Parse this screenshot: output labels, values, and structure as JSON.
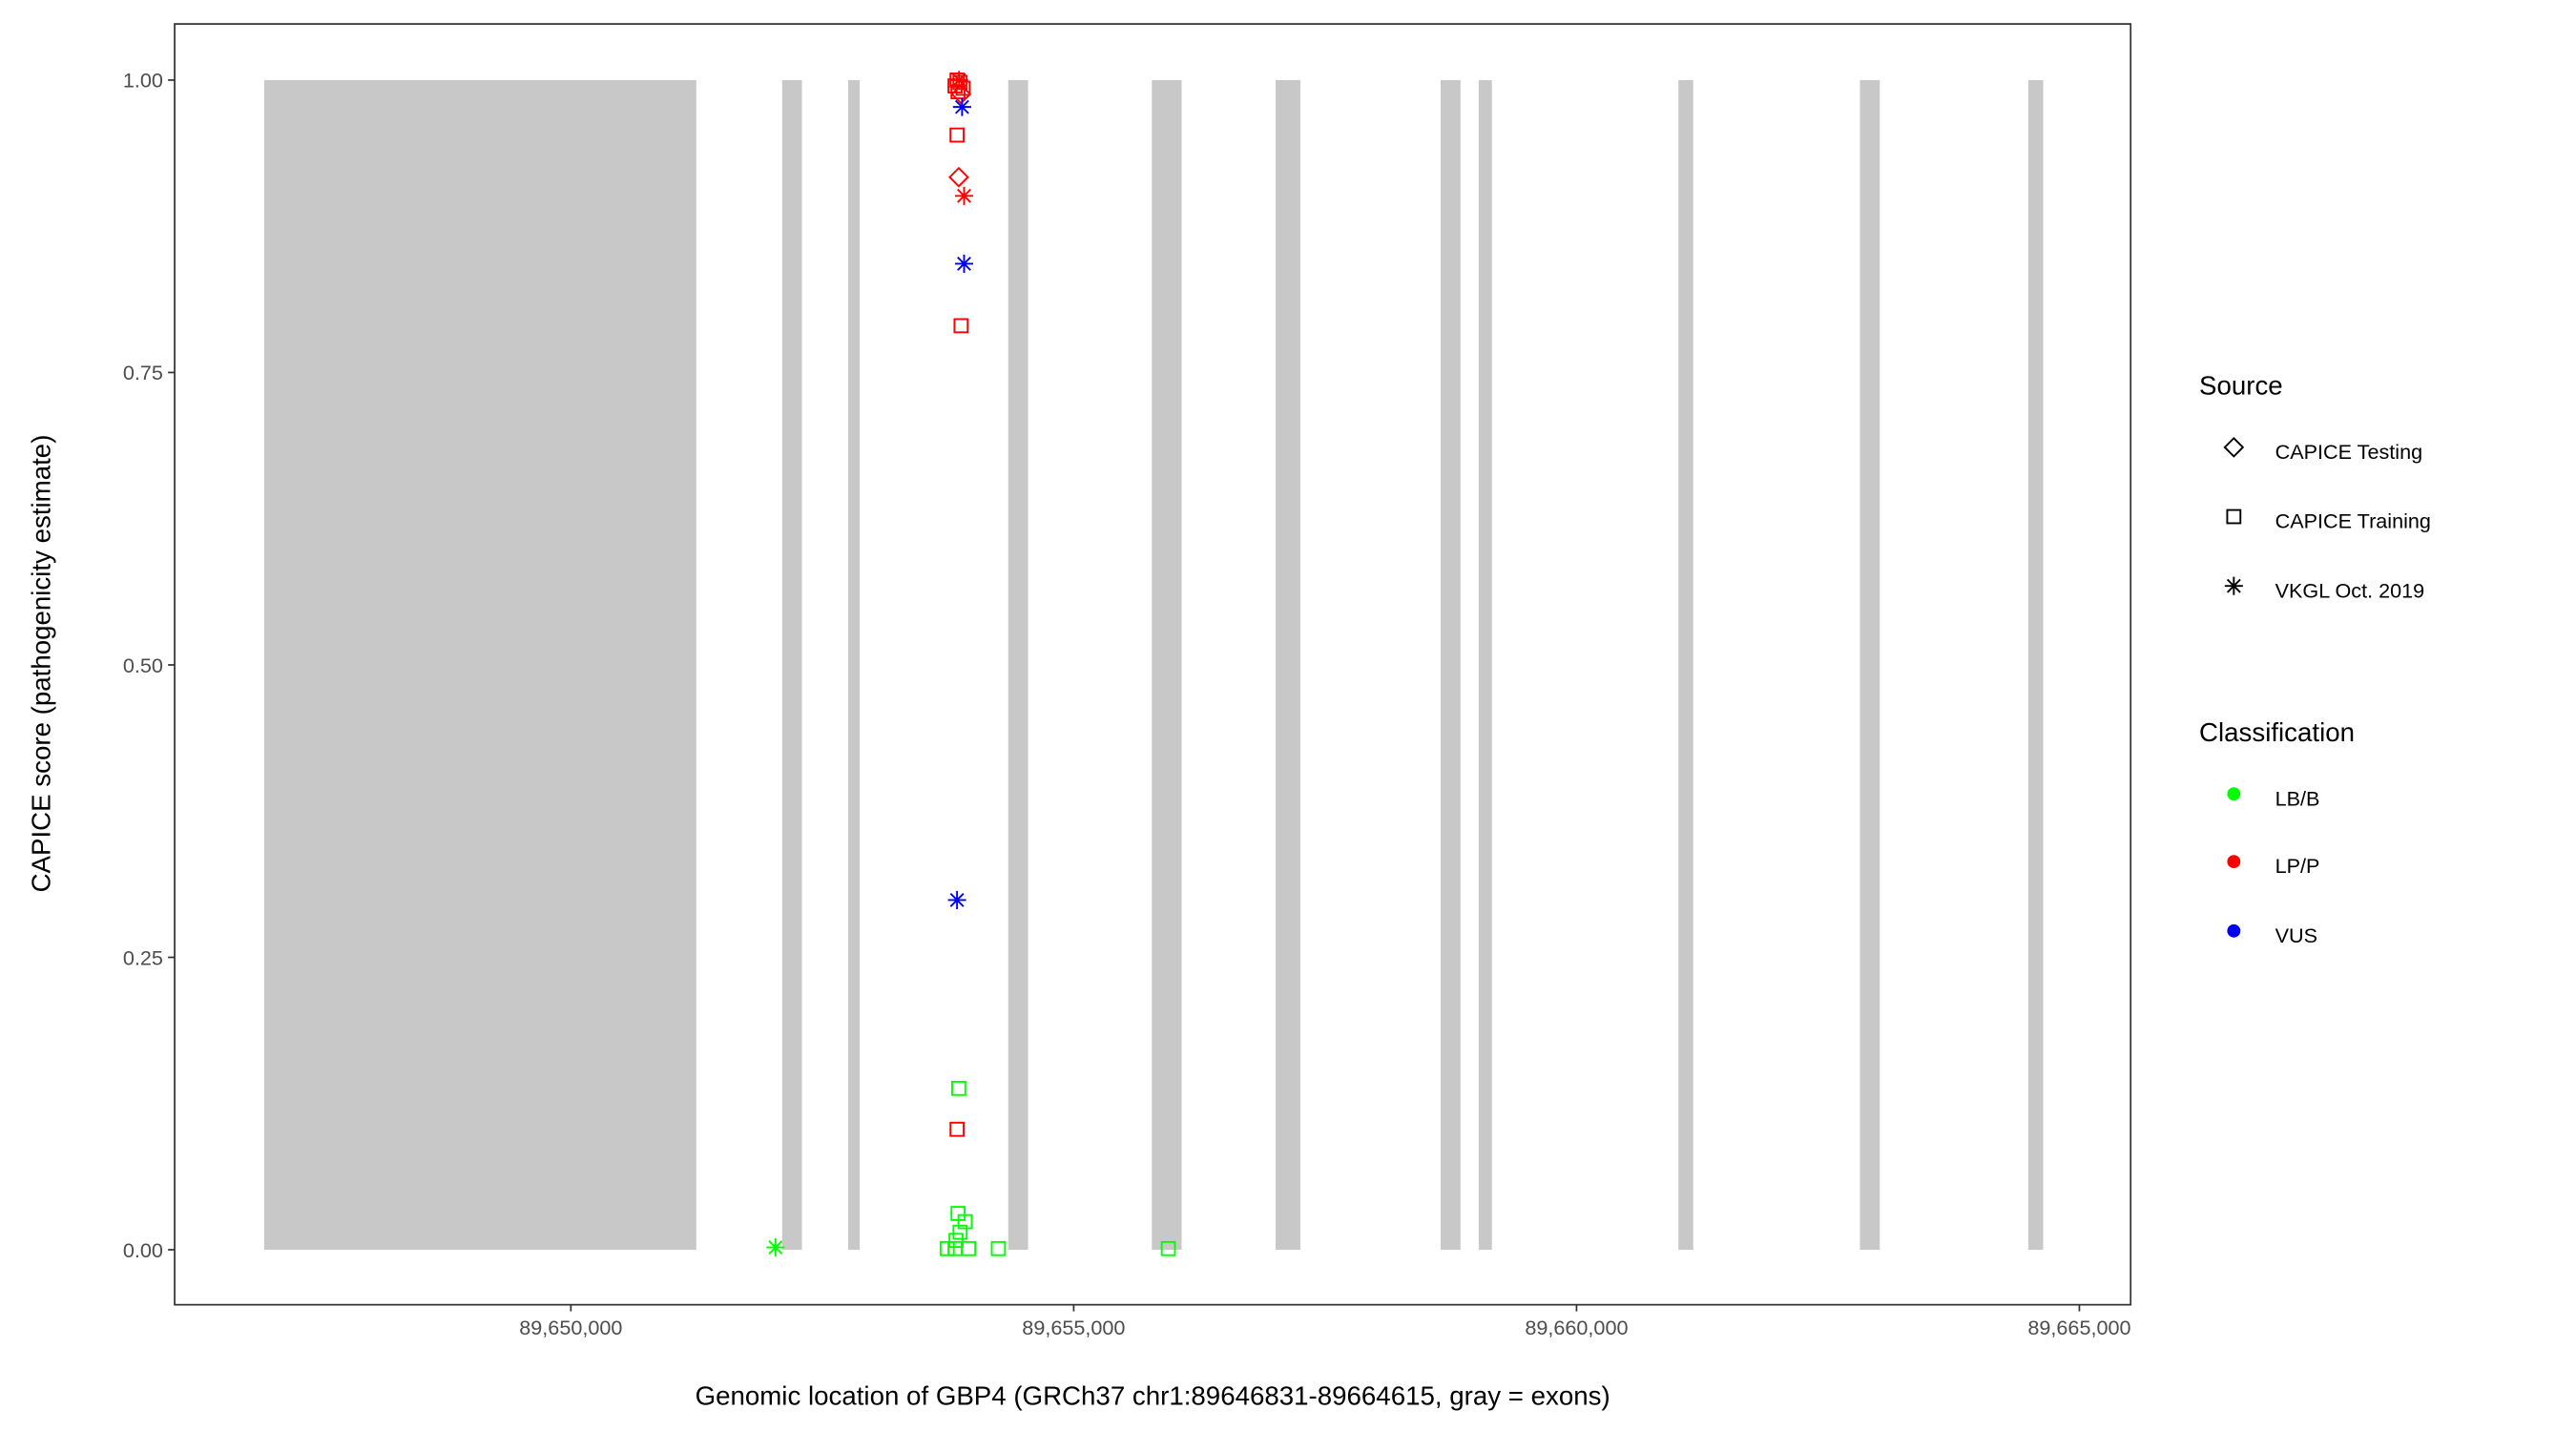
{
  "chart_data": {
    "type": "scatter",
    "title": "",
    "xlabel": "Genomic location of GBP4 (GRCh37 chr1:89646831-89664615, gray = exons)",
    "ylabel": "CAPICE score (pathogenicity estimate)",
    "xlim": [
      89646060,
      89665510
    ],
    "ylim": [
      -0.047,
      1.048
    ],
    "x_ticks": [
      89650000,
      89655000,
      89660000,
      89665000
    ],
    "x_tick_labels": [
      "89,650,000",
      "89,655,000",
      "89,660,000",
      "89,665,000"
    ],
    "y_ticks": [
      0,
      0.25,
      0.5,
      0.75,
      1.0
    ],
    "y_tick_labels": [
      "0.00",
      "0.25",
      "0.50",
      "0.75",
      "1.00"
    ],
    "grid": false,
    "exon_color": "#c8c8c8",
    "exons": [
      [
        89646950,
        89651247
      ],
      [
        89652101,
        89652298
      ],
      [
        89652757,
        89652872
      ],
      [
        89654349,
        89654546
      ],
      [
        89655777,
        89656073
      ],
      [
        89657008,
        89657254
      ],
      [
        89658649,
        89658846
      ],
      [
        89659027,
        89659158
      ],
      [
        89661013,
        89661160
      ],
      [
        89662818,
        89663015
      ],
      [
        89664492,
        89664640
      ]
    ],
    "legend_position": "right",
    "legend": {
      "source": {
        "title": "Source",
        "items": [
          {
            "label": "CAPICE Testing",
            "shape": "diamond"
          },
          {
            "label": "CAPICE Training",
            "shape": "square"
          },
          {
            "label": "VKGL Oct. 2019",
            "shape": "asterisk"
          }
        ]
      },
      "classification": {
        "title": "Classification",
        "items": [
          {
            "label": "LB/B",
            "color": "#00ff00"
          },
          {
            "label": "LP/P",
            "color": "#ff0000"
          },
          {
            "label": "VUS",
            "color": "#0000ff"
          }
        ]
      }
    },
    "points": [
      {
        "x": 89653840,
        "y": 1.0,
        "source": "CAPICE Training",
        "class": "LP/P"
      },
      {
        "x": 89653870,
        "y": 0.998,
        "source": "CAPICE Training",
        "class": "LP/P"
      },
      {
        "x": 89653820,
        "y": 0.995,
        "source": "CAPICE Training",
        "class": "LP/P"
      },
      {
        "x": 89653900,
        "y": 0.993,
        "source": "CAPICE Training",
        "class": "LP/P"
      },
      {
        "x": 89653850,
        "y": 0.99,
        "source": "CAPICE Training",
        "class": "LP/P"
      },
      {
        "x": 89653880,
        "y": 0.988,
        "source": "CAPICE Testing",
        "class": "LP/P"
      },
      {
        "x": 89653860,
        "y": 1.0,
        "source": "VKGL Oct. 2019",
        "class": "LP/P"
      },
      {
        "x": 89653890,
        "y": 0.977,
        "source": "VKGL Oct. 2019",
        "class": "VUS"
      },
      {
        "x": 89653840,
        "y": 0.953,
        "source": "CAPICE Training",
        "class": "LP/P"
      },
      {
        "x": 89653857,
        "y": 0.917,
        "source": "CAPICE Testing",
        "class": "LP/P"
      },
      {
        "x": 89653910,
        "y": 0.901,
        "source": "VKGL Oct. 2019",
        "class": "LP/P"
      },
      {
        "x": 89653910,
        "y": 0.843,
        "source": "VKGL Oct. 2019",
        "class": "VUS"
      },
      {
        "x": 89653880,
        "y": 0.79,
        "source": "CAPICE Training",
        "class": "LP/P"
      },
      {
        "x": 89653840,
        "y": 0.299,
        "source": "VKGL Oct. 2019",
        "class": "VUS"
      },
      {
        "x": 89653857,
        "y": 0.138,
        "source": "CAPICE Training",
        "class": "LB/B"
      },
      {
        "x": 89653840,
        "y": 0.103,
        "source": "CAPICE Training",
        "class": "LP/P"
      },
      {
        "x": 89653850,
        "y": 0.031,
        "source": "CAPICE Training",
        "class": "LB/B"
      },
      {
        "x": 89653920,
        "y": 0.024,
        "source": "CAPICE Training",
        "class": "LB/B"
      },
      {
        "x": 89653870,
        "y": 0.015,
        "source": "CAPICE Training",
        "class": "LB/B"
      },
      {
        "x": 89653830,
        "y": 0.008,
        "source": "CAPICE Training",
        "class": "LB/B"
      },
      {
        "x": 89653742,
        "y": 0.001,
        "source": "CAPICE Training",
        "class": "LB/B"
      },
      {
        "x": 89653820,
        "y": 0.001,
        "source": "CAPICE Training",
        "class": "LB/B"
      },
      {
        "x": 89653955,
        "y": 0.001,
        "source": "CAPICE Training",
        "class": "LB/B"
      },
      {
        "x": 89654251,
        "y": 0.001,
        "source": "CAPICE Training",
        "class": "LB/B"
      },
      {
        "x": 89655941,
        "y": 0.001,
        "source": "CAPICE Training",
        "class": "LB/B"
      },
      {
        "x": 89652035,
        "y": 0.002,
        "source": "VKGL Oct. 2019",
        "class": "LB/B"
      }
    ]
  }
}
